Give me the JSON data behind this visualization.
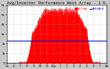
{
  "title": "Avg/Inverter Performance West Array - 1 D...",
  "legend_actual": "ACTUAL",
  "legend_average": "AVERAGE",
  "background_color": "#c8c8c8",
  "plot_bg_color": "#ffffff",
  "bar_color": "#ff0000",
  "avg_line_color": "#0000cc",
  "avg_value": 0.28,
  "ylim": [
    0,
    0.72
  ],
  "xlim": [
    0,
    1
  ],
  "grid_color": "#aaaaaa",
  "title_color": "#000000",
  "title_fontsize": 4.2,
  "tick_fontsize": 3.2,
  "x_ticks_pos": [
    0.0,
    0.067,
    0.133,
    0.2,
    0.267,
    0.333,
    0.4,
    0.467,
    0.533,
    0.6,
    0.667,
    0.733,
    0.8,
    0.867,
    0.933,
    1.0
  ],
  "x_ticks_labels": [
    "5a",
    "6",
    "7",
    "8",
    "9",
    "10",
    "11",
    "12p",
    "1",
    "2",
    "3",
    "4",
    "5",
    "6",
    "7",
    "8p"
  ],
  "y_ticks_pos": [
    0.0,
    0.12,
    0.24,
    0.36,
    0.48,
    0.6,
    0.72
  ],
  "y_ticks_labels": [
    "0",
    "1k",
    "2k",
    "3k",
    "4k",
    "5k",
    "6k"
  ]
}
